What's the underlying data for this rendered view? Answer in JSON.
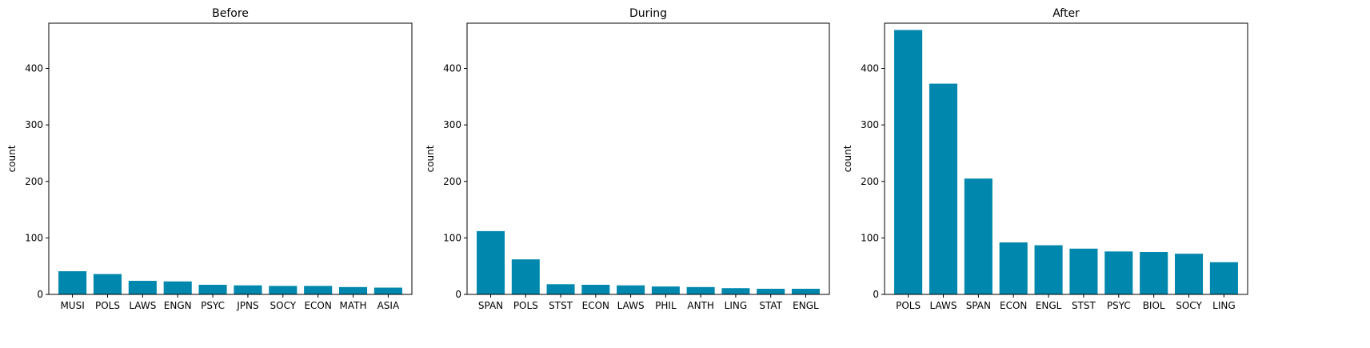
{
  "chart_data": [
    {
      "type": "bar",
      "title": "Before",
      "xlabel": "",
      "ylabel": "count",
      "ylim": [
        0,
        480
      ],
      "yticks": [
        0,
        100,
        200,
        300,
        400
      ],
      "color": "#0087ad",
      "categories": [
        "MUSI",
        "POLS",
        "LAWS",
        "ENGN",
        "PSYC",
        "JPNS",
        "SOCY",
        "ECON",
        "MATH",
        "ASIA"
      ],
      "values": [
        41,
        36,
        24,
        23,
        17,
        16,
        15,
        15,
        13,
        12
      ]
    },
    {
      "type": "bar",
      "title": "During",
      "xlabel": "",
      "ylabel": "count",
      "ylim": [
        0,
        480
      ],
      "yticks": [
        0,
        100,
        200,
        300,
        400
      ],
      "color": "#0087ad",
      "categories": [
        "SPAN",
        "POLS",
        "STST",
        "ECON",
        "LAWS",
        "PHIL",
        "ANTH",
        "LING",
        "STAT",
        "ENGL"
      ],
      "values": [
        112,
        62,
        18,
        17,
        16,
        14,
        13,
        11,
        10,
        10
      ]
    },
    {
      "type": "bar",
      "title": "After",
      "xlabel": "",
      "ylabel": "count",
      "ylim": [
        0,
        480
      ],
      "yticks": [
        0,
        100,
        200,
        300,
        400
      ],
      "color": "#0087ad",
      "categories": [
        "POLS",
        "LAWS",
        "SPAN",
        "ECON",
        "ENGL",
        "STST",
        "PSYC",
        "BIOL",
        "SOCY",
        "LING"
      ],
      "values": [
        468,
        373,
        205,
        92,
        87,
        81,
        76,
        75,
        72,
        57
      ]
    }
  ]
}
